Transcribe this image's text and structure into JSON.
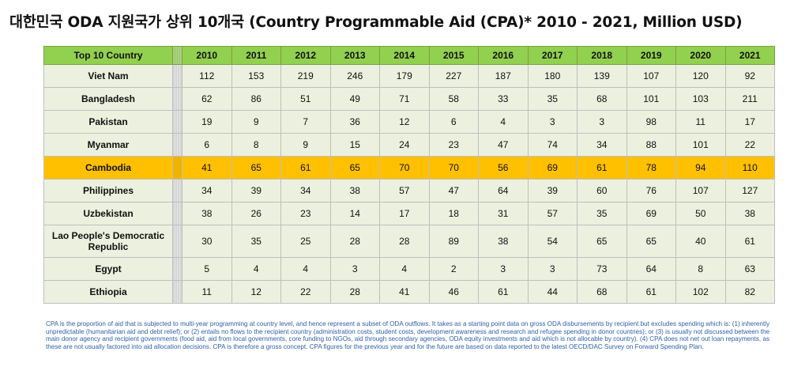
{
  "chart_data": {
    "type": "table",
    "title": "대한민국 ODA 지원국가 상위 10개국 (Country Programmable Aid (CPA)* 2010 - 2021, Million USD)",
    "header_label": "Top 10 Country",
    "years": [
      "2010",
      "2011",
      "2012",
      "2013",
      "2014",
      "2015",
      "2016",
      "2017",
      "2018",
      "2019",
      "2020",
      "2021"
    ],
    "rows": [
      {
        "country": "Viet Nam",
        "values": [
          112,
          153,
          219,
          246,
          179,
          227,
          187,
          180,
          139,
          107,
          120,
          92
        ]
      },
      {
        "country": "Bangladesh",
        "values": [
          62,
          86,
          51,
          49,
          71,
          58,
          33,
          35,
          68,
          101,
          103,
          211
        ]
      },
      {
        "country": "Pakistan",
        "values": [
          19,
          9,
          7,
          36,
          12,
          6,
          4,
          3,
          3,
          98,
          11,
          17
        ]
      },
      {
        "country": "Myanmar",
        "values": [
          6,
          8,
          9,
          15,
          24,
          23,
          47,
          74,
          34,
          88,
          101,
          22
        ]
      },
      {
        "country": "Cambodia",
        "values": [
          41,
          65,
          61,
          65,
          70,
          70,
          56,
          69,
          61,
          78,
          94,
          110
        ]
      },
      {
        "country": "Philippines",
        "values": [
          34,
          39,
          34,
          38,
          57,
          47,
          64,
          39,
          60,
          76,
          107,
          127
        ]
      },
      {
        "country": "Uzbekistan",
        "values": [
          38,
          26,
          23,
          14,
          17,
          18,
          31,
          57,
          35,
          69,
          50,
          38
        ]
      },
      {
        "country": "Lao People's Democratic Republic",
        "values": [
          30,
          35,
          25,
          28,
          28,
          89,
          38,
          54,
          65,
          65,
          40,
          61
        ]
      },
      {
        "country": "Egypt",
        "values": [
          5,
          4,
          4,
          3,
          4,
          2,
          3,
          3,
          73,
          64,
          8,
          63
        ]
      },
      {
        "country": "Ethiopia",
        "values": [
          11,
          12,
          22,
          28,
          41,
          46,
          61,
          44,
          68,
          61,
          102,
          82
        ]
      }
    ],
    "highlight_country": "Cambodia",
    "footnote": "CPA is the proportion of aid that is subjected to multi-year programming at country level, and hence represent a subset of ODA outflows. It takes as a starting point data on gross ODA disbursements by recipient but excludes spending which is: (1) inherently unpredictable (humanitarian aid and debt relief); or (2) entails no flows to the recipient country (administration costs, student costs, development awareness and research and refugee spending in donor countries); or (3) is usually not discussed between the main donor agency and recipient governments (food aid, aid from local governments, core funding to NGOs, aid through secondary agencies, ODA equity investments and aid which is not allocable by country). (4) CPA does not net out loan repayments, as these are not usually factored into aid allocation decisions. CPA is therefore a gross concept. CPA figures for the previous year and for the future are based on data reported to the latest OECD/DAC Survey on Forward Spending Plan.",
    "colors": {
      "header": "#92d050",
      "row": "#ebf1de",
      "highlight": "#ffc000",
      "footnote": "#2e5fa8"
    }
  }
}
